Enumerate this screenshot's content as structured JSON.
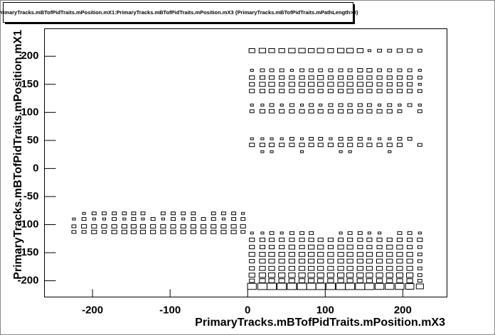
{
  "chart_data": {
    "type": "box2d",
    "title": "PrimaryTracks.mBTofPidTraits.mPosition.mX1:PrimaryTracks.mBTofPidTraits.mPosition.mX3 {PrimaryTracks.mBTofPidTraits.mPathLength>0}",
    "x_label": "PrimaryTracks.mBTofPidTraits.mPosition.mX3",
    "y_label": "PrimaryTracks.mBTofPidTraits.mPosition.mX1",
    "xlim": [
      -262,
      257
    ],
    "ylim": [
      -229,
      249
    ],
    "xticks": [
      -200,
      -100,
      0,
      100,
      200
    ],
    "yticks": [
      -200,
      -150,
      -100,
      -50,
      0,
      50,
      100,
      150,
      200
    ],
    "color": "#000000",
    "groups": [
      {
        "x": [
          5.5,
          19,
          31,
          44,
          57,
          70,
          82,
          94,
          107,
          120,
          132,
          145,
          157,
          170,
          183,
          196,
          209,
          222
        ],
        "rows": [
          {
            "y": 210,
            "values": [
              4,
              5,
              4,
              4,
              5,
              5,
              4,
              5,
              4,
              5,
              5,
              4,
              1,
              2,
              2,
              3,
              3,
              2
            ]
          },
          {
            "y": 175,
            "values": [
              1,
              2,
              2,
              2,
              1,
              2,
              2,
              2,
              2,
              2,
              2,
              3,
              3,
              2,
              2,
              2,
              2,
              1
            ]
          },
          {
            "y": 162,
            "values": [
              3,
              3,
              3,
              3,
              3,
              3,
              3,
              4,
              3,
              3,
              3,
              3,
              3,
              3,
              3,
              3,
              3,
              2
            ]
          },
          {
            "y": 150,
            "values": [
              3,
              4,
              4,
              3,
              4,
              4,
              4,
              4,
              4,
              4,
              4,
              4,
              4,
              3,
              3,
              3,
              3,
              1
            ]
          },
          {
            "y": 138,
            "values": [
              3,
              3,
              3,
              3,
              3,
              3,
              3,
              3,
              3,
              3,
              4,
              3,
              3,
              3,
              3,
              3,
              3,
              2
            ]
          },
          {
            "y": 113,
            "values": [
              1,
              1,
              2,
              1,
              2,
              1,
              2,
              1,
              2,
              2,
              2,
              2,
              2,
              1,
              2,
              1,
              2,
              1
            ]
          },
          {
            "y": 102,
            "values": [
              2,
              3,
              3,
              3,
              3,
              3,
              3,
              3,
              3,
              3,
              3,
              3,
              3,
              3,
              3,
              2,
              0,
              2
            ]
          },
          {
            "y": 53,
            "values": [
              1,
              1,
              1,
              1,
              2,
              1,
              2,
              2,
              1,
              2,
              2,
              2,
              1,
              1,
              1,
              2,
              2,
              0
            ]
          },
          {
            "y": 42,
            "values": [
              3,
              3,
              3,
              3,
              3,
              3,
              3,
              3,
              3,
              3,
              3,
              3,
              3,
              3,
              3,
              3,
              0,
              2
            ]
          },
          {
            "y": 30,
            "values": [
              0,
              1,
              1,
              0,
              0,
              1,
              0,
              0,
              0,
              1,
              1,
              0,
              0,
              0,
              1,
              0,
              0,
              0
            ]
          },
          {
            "y": -115,
            "values": [
              1,
              1,
              2,
              1,
              2,
              2,
              2,
              0,
              0,
              1,
              2,
              2,
              1,
              1,
              0,
              2,
              2,
              1
            ]
          },
          {
            "y": -127,
            "values": [
              3,
              3,
              3,
              3,
              3,
              3,
              3,
              3,
              3,
              3,
              3,
              3,
              3,
              3,
              3,
              3,
              3,
              3
            ]
          },
          {
            "y": -140,
            "values": [
              3,
              3,
              3,
              3,
              4,
              3,
              4,
              4,
              3,
              4,
              4,
              3,
              3,
              3,
              4,
              4,
              3,
              2
            ]
          },
          {
            "y": -153,
            "values": [
              4,
              4,
              4,
              4,
              4,
              4,
              4,
              4,
              4,
              4,
              4,
              4,
              4,
              4,
              4,
              4,
              4,
              2
            ]
          },
          {
            "y": -165,
            "values": [
              3,
              4,
              4,
              4,
              4,
              4,
              4,
              4,
              4,
              4,
              4,
              4,
              4,
              4,
              4,
              4,
              4,
              2
            ]
          },
          {
            "y": -178,
            "values": [
              3,
              4,
              4,
              4,
              4,
              4,
              4,
              4,
              4,
              4,
              4,
              4,
              4,
              4,
              4,
              4,
              4,
              2
            ]
          },
          {
            "y": -190,
            "values": [
              4,
              5,
              5,
              5,
              5,
              5,
              5,
              5,
              5,
              5,
              5,
              5,
              5,
              5,
              5,
              5,
              5,
              2
            ]
          },
          {
            "y": -200,
            "values": [
              3,
              4,
              4,
              4,
              4,
              4,
              4,
              4,
              4,
              4,
              4,
              4,
              4,
              4,
              4,
              4,
              4,
              2
            ]
          },
          {
            "y": -210,
            "values": [
              9,
              10,
              10,
              10,
              10,
              10,
              10,
              10,
              10,
              10,
              10,
              10,
              10,
              9,
              9,
              9,
              8,
              6
            ]
          }
        ]
      },
      {
        "x": [
          -224,
          -211,
          -198,
          -185,
          -172,
          -159,
          -147,
          -135,
          -122,
          -109,
          -96,
          -83,
          -70,
          -57,
          -44,
          -31,
          -18,
          -6
        ],
        "rows": [
          {
            "y": -80,
            "values": [
              0,
              1,
              2,
              2,
              2,
              2,
              2,
              2,
              0,
              2,
              2,
              2,
              2,
              0,
              2,
              2,
              2,
              1
            ]
          },
          {
            "y": -90,
            "values": [
              1,
              2,
              1,
              1,
              2,
              1,
              2,
              1,
              2,
              1,
              2,
              1,
              2,
              2,
              2,
              1,
              2,
              2
            ]
          },
          {
            "y": -103,
            "values": [
              2,
              3,
              3,
              3,
              3,
              3,
              3,
              3,
              3,
              3,
              3,
              3,
              3,
              3,
              3,
              3,
              3,
              3
            ]
          },
          {
            "y": -113,
            "values": [
              2,
              2,
              3,
              2,
              3,
              3,
              3,
              3,
              3,
              3,
              3,
              3,
              3,
              3,
              3,
              3,
              3,
              2
            ]
          }
        ]
      }
    ]
  }
}
